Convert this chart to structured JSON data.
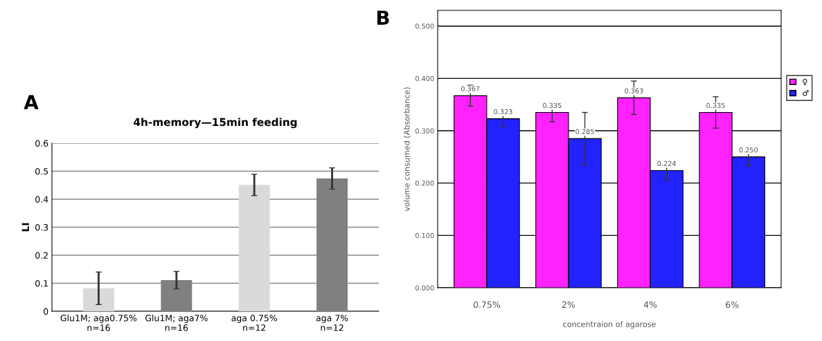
{
  "chart_data": [
    {
      "type": "bar",
      "title": "4h-memory—15min feeding",
      "ylabel": "LI",
      "annotations": [
        "A"
      ],
      "categories": [
        "Glu1M; aga0.75%\nn=16",
        "Glu1M; aga7%\nn=16",
        "aga 0.75%\nn=12",
        "aga 7%\nn=12"
      ],
      "values": [
        0.082,
        0.111,
        0.451,
        0.474
      ],
      "colors": [
        "#d9d9d9",
        "#808080",
        "#d9d9d9",
        "#808080"
      ],
      "errors": [
        0.058,
        0.031,
        0.038,
        0.038
      ],
      "ylim": [
        0,
        0.6
      ],
      "yticks": [
        0,
        0.1,
        0.2,
        0.3,
        0.4,
        0.5,
        0.6
      ],
      "grid": "y"
    },
    {
      "type": "bar",
      "xlabel": "concentraion of agarose",
      "ylabel": "volume consumed (Absorbance)",
      "annotations": [
        "B"
      ],
      "categories": [
        "0.75%",
        "2%",
        "4%",
        "6%"
      ],
      "series": [
        {
          "name": "♀",
          "color": "#ff22ff",
          "values": [
            0.367,
            0.335,
            0.363,
            0.335
          ],
          "errors": [
            0.02,
            0.018,
            0.032,
            0.03
          ],
          "value_labels": [
            "0.367",
            "0.335",
            "0.363",
            "0.335"
          ]
        },
        {
          "name": "♂",
          "color": "#2222ff",
          "values": [
            0.323,
            0.285,
            0.224,
            0.25
          ],
          "errors": [
            0.015,
            0.05,
            0.018,
            0.017
          ],
          "value_labels": [
            "0.323",
            "0.285",
            "0.224",
            "0.250"
          ]
        }
      ],
      "ylim": [
        0,
        0.53
      ],
      "yticks": [
        {
          "value": 0,
          "label": "0.000"
        },
        {
          "value": 0.1,
          "label": "0.100"
        },
        {
          "value": 0.2,
          "label": "0.200"
        },
        {
          "value": 0.3,
          "label": "0.300"
        },
        {
          "value": 0.4,
          "label": "0.400"
        },
        {
          "value": 0.5,
          "label": "0.500"
        }
      ],
      "grid": "y",
      "legend": "right"
    }
  ]
}
